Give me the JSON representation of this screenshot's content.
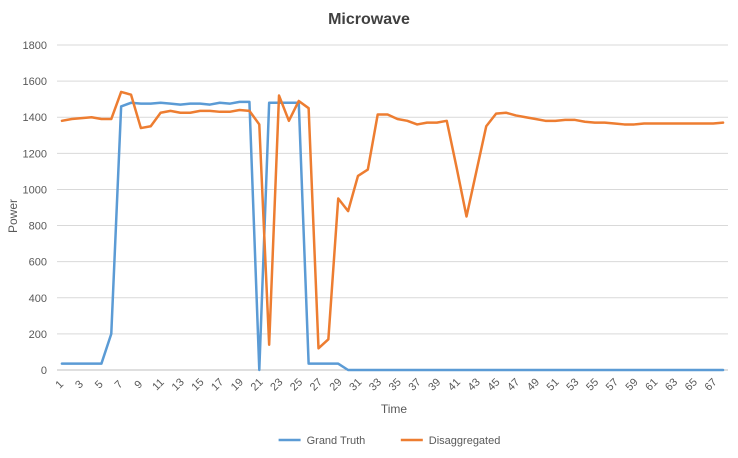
{
  "chart_data": {
    "type": "line",
    "title": "Microwave",
    "xlabel": "Time",
    "ylabel": "Power",
    "ylim": [
      0,
      1800
    ],
    "yticks": [
      0,
      200,
      400,
      600,
      800,
      1000,
      1200,
      1400,
      1600,
      1800
    ],
    "x": [
      1,
      2,
      3,
      4,
      5,
      6,
      7,
      8,
      9,
      10,
      11,
      12,
      13,
      14,
      15,
      16,
      17,
      18,
      19,
      20,
      21,
      22,
      23,
      24,
      25,
      26,
      27,
      28,
      29,
      30,
      31,
      32,
      33,
      34,
      35,
      36,
      37,
      38,
      39,
      40,
      41,
      42,
      43,
      44,
      45,
      46,
      47,
      48,
      49,
      50,
      51,
      52,
      53,
      54,
      55,
      56,
      57,
      58,
      59,
      60,
      61,
      62,
      63,
      64,
      65,
      66,
      67,
      68
    ],
    "xtick_labels": [
      "1",
      "3",
      "5",
      "7",
      "9",
      "11",
      "13",
      "15",
      "17",
      "19",
      "21",
      "23",
      "25",
      "27",
      "29",
      "31",
      "33",
      "35",
      "37",
      "39",
      "41",
      "43",
      "45",
      "47",
      "49",
      "51",
      "53",
      "55",
      "57",
      "59",
      "61",
      "63",
      "65",
      "67"
    ],
    "grid": true,
    "legend_position": "bottom",
    "series": [
      {
        "name": "Grand Truth",
        "color": "#5B9BD5",
        "values": [
          35,
          35,
          35,
          35,
          35,
          200,
          1460,
          1480,
          1475,
          1475,
          1480,
          1475,
          1470,
          1475,
          1475,
          1470,
          1480,
          1475,
          1485,
          1485,
          0,
          1480,
          1480,
          1480,
          1480,
          35,
          35,
          35,
          35,
          0,
          0,
          0,
          0,
          0,
          0,
          0,
          0,
          0,
          0,
          0,
          0,
          0,
          0,
          0,
          0,
          0,
          0,
          0,
          0,
          0,
          0,
          0,
          0,
          0,
          0,
          0,
          0,
          0,
          0,
          0,
          0,
          0,
          0,
          0,
          0,
          0,
          0,
          0
        ]
      },
      {
        "name": "Disaggregated",
        "color": "#ED7D31",
        "values": [
          1380,
          1390,
          1395,
          1400,
          1390,
          1390,
          1540,
          1525,
          1340,
          1350,
          1425,
          1435,
          1425,
          1425,
          1435,
          1435,
          1430,
          1430,
          1440,
          1435,
          1360,
          140,
          1520,
          1380,
          1490,
          1450,
          120,
          170,
          950,
          880,
          1075,
          1110,
          1415,
          1415,
          1390,
          1380,
          1360,
          1370,
          1370,
          1380,
          1120,
          850,
          1100,
          1350,
          1420,
          1425,
          1410,
          1400,
          1390,
          1380,
          1380,
          1385,
          1385,
          1375,
          1370,
          1370,
          1365,
          1360,
          1360,
          1365,
          1365,
          1365,
          1365,
          1365,
          1365,
          1365,
          1365,
          1370
        ]
      }
    ]
  }
}
